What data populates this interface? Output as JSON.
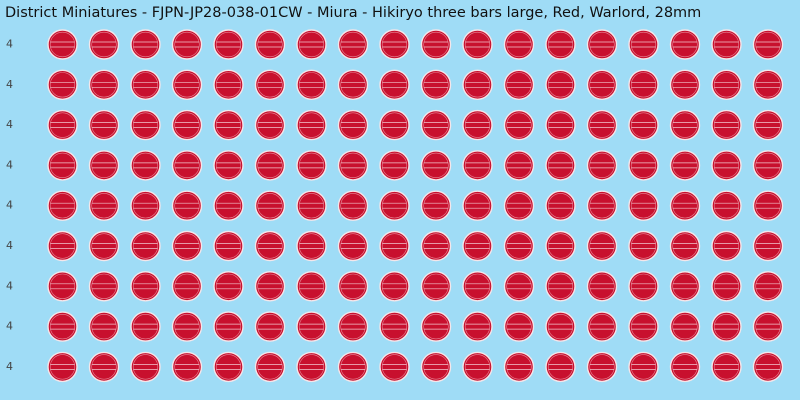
{
  "header": {
    "title": "District Miniatures - FJPN-JP28-038-01CW - Miura - Hikiryo three bars large, Red, Warlord, 28mm"
  },
  "rows": [
    {
      "label": "4"
    },
    {
      "label": "4"
    },
    {
      "label": "4"
    },
    {
      "label": "4"
    },
    {
      "label": "4"
    },
    {
      "label": "4"
    },
    {
      "label": "4"
    },
    {
      "label": "4"
    },
    {
      "label": "4"
    }
  ]
}
